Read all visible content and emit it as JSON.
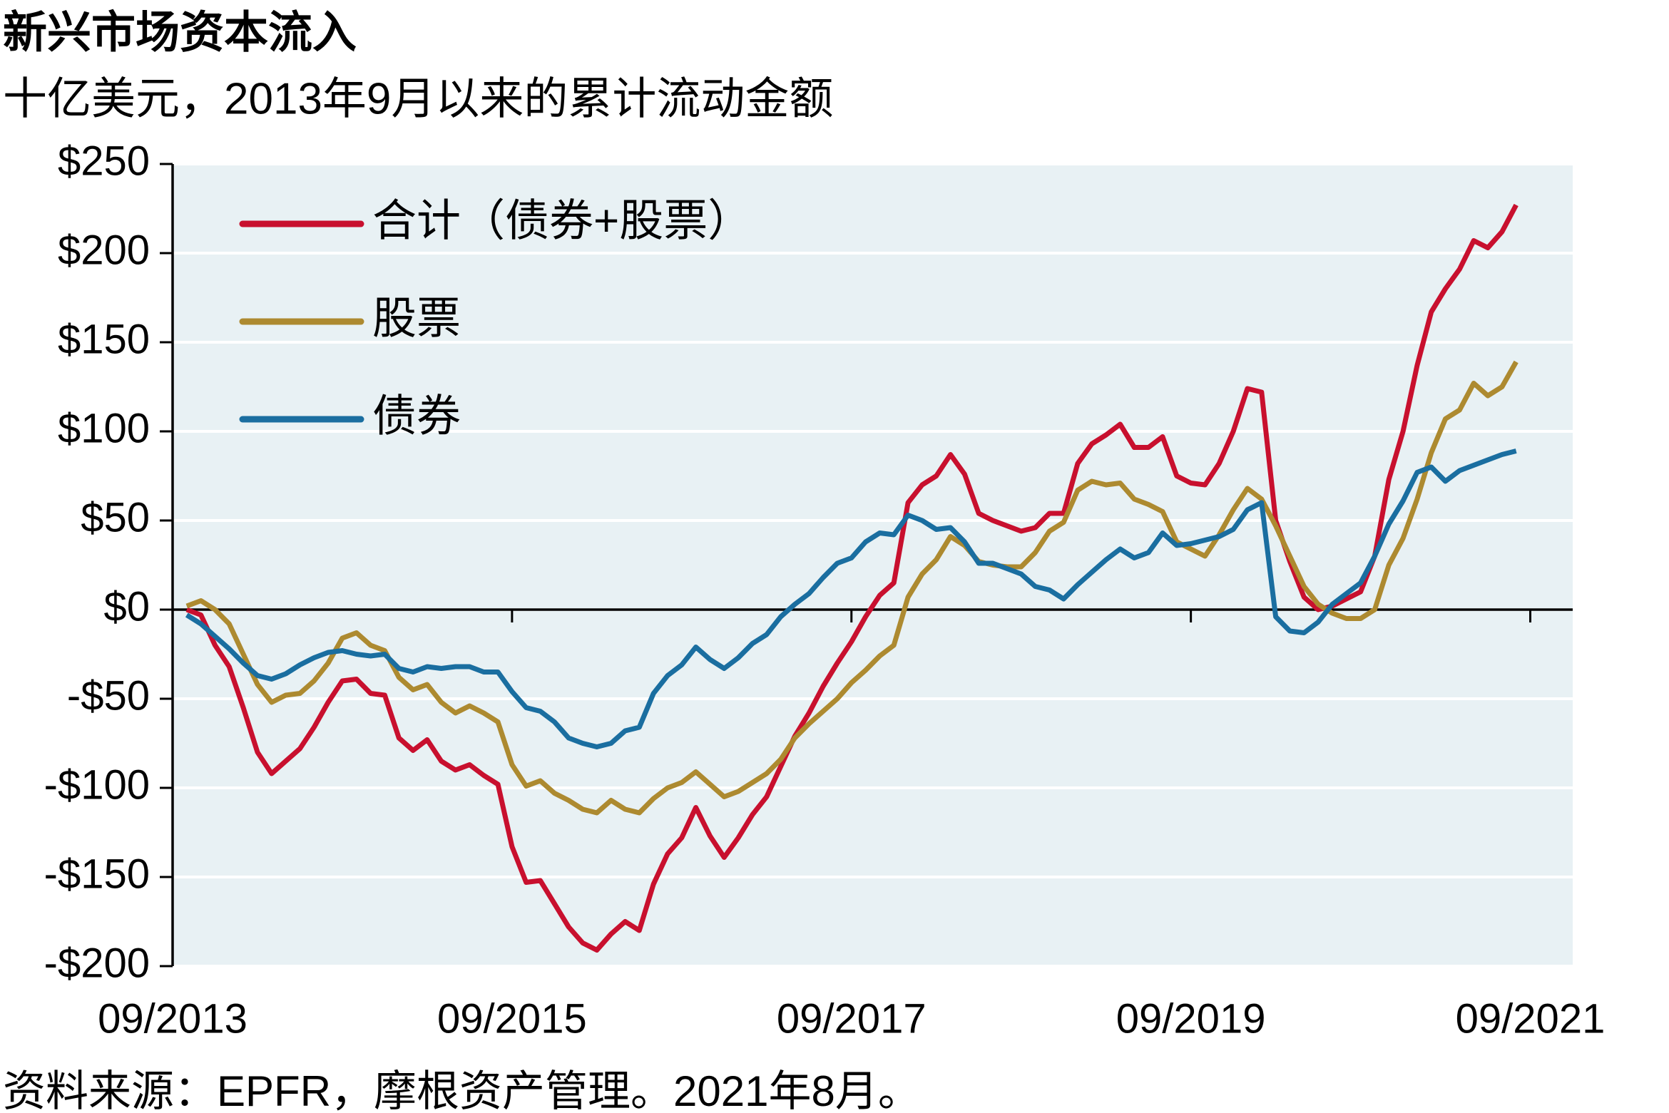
{
  "chart_data": {
    "type": "line",
    "title": "新兴市场资本流入",
    "subtitle": "十亿美元，2013年9月以来的累计流动金额",
    "source": "资料来源：EPFR，摩根资产管理。2021年8月。",
    "x": [
      "10/2013",
      "11/2013",
      "12/2013",
      "01/2014",
      "02/2014",
      "03/2014",
      "04/2014",
      "05/2014",
      "06/2014",
      "07/2014",
      "08/2014",
      "09/2014",
      "10/2014",
      "11/2014",
      "12/2014",
      "01/2015",
      "02/2015",
      "03/2015",
      "04/2015",
      "05/2015",
      "06/2015",
      "07/2015",
      "08/2015",
      "09/2015",
      "10/2015",
      "11/2015",
      "12/2015",
      "01/2016",
      "02/2016",
      "03/2016",
      "04/2016",
      "05/2016",
      "06/2016",
      "07/2016",
      "08/2016",
      "09/2016",
      "10/2016",
      "11/2016",
      "12/2016",
      "01/2017",
      "02/2017",
      "03/2017",
      "04/2017",
      "05/2017",
      "06/2017",
      "07/2017",
      "08/2017",
      "09/2017",
      "10/2017",
      "11/2017",
      "12/2017",
      "01/2018",
      "02/2018",
      "03/2018",
      "04/2018",
      "05/2018",
      "06/2018",
      "07/2018",
      "08/2018",
      "09/2018",
      "10/2018",
      "11/2018",
      "12/2018",
      "01/2019",
      "02/2019",
      "03/2019",
      "04/2019",
      "05/2019",
      "06/2019",
      "07/2019",
      "08/2019",
      "09/2019",
      "10/2019",
      "11/2019",
      "12/2019",
      "01/2020",
      "02/2020",
      "03/2020",
      "04/2020",
      "05/2020",
      "06/2020",
      "07/2020",
      "08/2020",
      "09/2020",
      "10/2020",
      "11/2020",
      "12/2020",
      "01/2021",
      "02/2021",
      "03/2021",
      "04/2021",
      "05/2021",
      "06/2021",
      "07/2021",
      "08/2021"
    ],
    "series": [
      {
        "name": "合计（债券+股票）",
        "color": "#c8102e",
        "values": [
          0,
          -3,
          -20,
          -32,
          -55,
          -80,
          -92,
          -85,
          -78,
          -66,
          -52,
          -40,
          -39,
          -47,
          -48,
          -72,
          -79,
          -73,
          -85,
          -90,
          -87,
          -93,
          -98,
          -133,
          -153,
          -152,
          -165,
          -178,
          -187,
          -191,
          -182,
          -175,
          -180,
          -154,
          -137,
          -128,
          -111,
          -127,
          -139,
          -128,
          -115,
          -105,
          -88,
          -71,
          -58,
          -43,
          -30,
          -18,
          -4,
          8,
          15,
          60,
          70,
          75,
          87,
          76,
          54,
          50,
          47,
          44,
          46,
          54,
          54,
          82,
          93,
          98,
          104,
          91,
          91,
          97,
          75,
          71,
          70,
          82,
          100,
          124,
          122,
          50,
          27,
          7,
          0,
          2,
          6,
          10,
          30,
          73,
          100,
          137,
          167,
          180,
          191,
          207,
          203,
          212,
          227
        ]
      },
      {
        "name": "股票",
        "color": "#ad8a30",
        "values": [
          2,
          5,
          0,
          -8,
          -25,
          -42,
          -52,
          -48,
          -47,
          -40,
          -30,
          -16,
          -13,
          -20,
          -23,
          -38,
          -45,
          -42,
          -52,
          -58,
          -54,
          -58,
          -63,
          -87,
          -99,
          -96,
          -103,
          -107,
          -112,
          -114,
          -107,
          -112,
          -114,
          -106,
          -100,
          -97,
          -91,
          -98,
          -105,
          -102,
          -97,
          -92,
          -84,
          -72,
          -64,
          -57,
          -50,
          -41,
          -34,
          -26,
          -20,
          7,
          20,
          28,
          41,
          36,
          27,
          25,
          24,
          24,
          32,
          44,
          49,
          67,
          72,
          70,
          71,
          62,
          59,
          55,
          38,
          34,
          30,
          42,
          56,
          68,
          62,
          47,
          30,
          13,
          3,
          -2,
          -5,
          -5,
          0,
          25,
          40,
          62,
          88,
          107,
          112,
          127,
          120,
          125,
          139
        ]
      },
      {
        "name": "债券",
        "color": "#1a6ea0",
        "values": [
          -3,
          -8,
          -15,
          -22,
          -30,
          -37,
          -39,
          -36,
          -31,
          -27,
          -24,
          -23,
          -25,
          -26,
          -25,
          -33,
          -35,
          -32,
          -33,
          -32,
          -32,
          -35,
          -35,
          -46,
          -55,
          -57,
          -63,
          -72,
          -75,
          -77,
          -75,
          -68,
          -66,
          -47,
          -37,
          -31,
          -21,
          -28,
          -33,
          -27,
          -19,
          -14,
          -4,
          3,
          9,
          18,
          26,
          29,
          38,
          43,
          42,
          53,
          50,
          45,
          46,
          38,
          26,
          26,
          23,
          20,
          13,
          11,
          6,
          14,
          21,
          28,
          34,
          29,
          32,
          43,
          36,
          37,
          39,
          41,
          45,
          56,
          60,
          -4,
          -12,
          -13,
          -7,
          3,
          9,
          15,
          30,
          48,
          61,
          77,
          80,
          72,
          78,
          81,
          84,
          87,
          89
        ]
      }
    ],
    "xlim": [
      "09/2013",
      "12/2021"
    ],
    "xticks": [
      "09/2013",
      "09/2015",
      "09/2017",
      "09/2019",
      "09/2021"
    ],
    "ylim": [
      -200,
      250
    ],
    "yticks": [
      {
        "value": -200,
        "label": "-$200"
      },
      {
        "value": -150,
        "label": "-$150"
      },
      {
        "value": -100,
        "label": "-$100"
      },
      {
        "value": -50,
        "label": "-$50"
      },
      {
        "value": 0,
        "label": "$0"
      },
      {
        "value": 50,
        "label": "$50"
      },
      {
        "value": 100,
        "label": "$100"
      },
      {
        "value": 150,
        "label": "$150"
      },
      {
        "value": 200,
        "label": "$200"
      },
      {
        "value": 250,
        "label": "$250"
      }
    ],
    "grid": true,
    "legend": "upper left"
  }
}
